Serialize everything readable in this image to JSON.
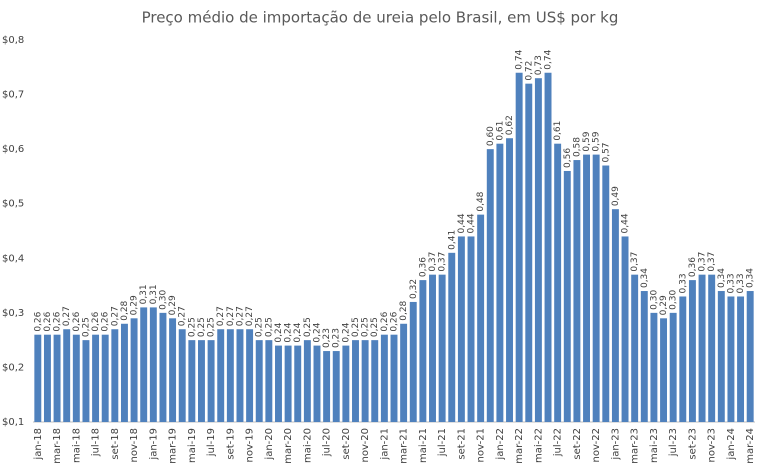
{
  "chart_data": {
    "type": "bar",
    "title": "Preço médio de importação de ureia pelo Brasil, em US$ por kg",
    "categories": [
      "jan-18",
      null,
      "mar-18",
      null,
      "mai-18",
      null,
      "jul-18",
      null,
      "set-18",
      null,
      "nov-18",
      null,
      "jan-19",
      null,
      "mar-19",
      null,
      "mai-19",
      null,
      "jul-19",
      null,
      "set-19",
      null,
      "nov-19",
      null,
      "jan-20",
      null,
      "mar-20",
      null,
      "mai-20",
      null,
      "jul-20",
      null,
      "set-20",
      null,
      "nov-20",
      null,
      "jan-21",
      null,
      "mar-21",
      null,
      "mai-21",
      null,
      "jul-21",
      null,
      "set-21",
      null,
      "nov-21",
      null,
      "jan-22",
      null,
      "mar-22",
      null,
      "mai-22",
      null,
      "jul-22",
      null,
      "set-22",
      null,
      "nov-22",
      null,
      "jan-23",
      null,
      "mar-23",
      null,
      "mai-23",
      null,
      "jul-23",
      null,
      "set-23",
      null,
      "nov-23",
      null,
      "jan-24",
      null,
      "mar-24"
    ],
    "values": [
      0.26,
      0.26,
      0.26,
      0.27,
      0.26,
      0.25,
      0.26,
      0.26,
      0.27,
      0.28,
      0.29,
      0.31,
      0.31,
      0.3,
      0.29,
      0.27,
      0.25,
      0.25,
      0.25,
      0.27,
      0.27,
      0.27,
      0.27,
      0.25,
      0.25,
      0.24,
      0.24,
      0.24,
      0.25,
      0.24,
      0.23,
      0.23,
      0.24,
      0.25,
      0.25,
      0.25,
      0.26,
      0.26,
      0.28,
      0.32,
      0.36,
      0.37,
      0.37,
      0.41,
      0.44,
      0.44,
      0.48,
      0.6,
      0.61,
      0.62,
      0.74,
      0.72,
      0.73,
      0.74,
      0.61,
      0.56,
      0.58,
      0.59,
      0.59,
      0.57,
      0.49,
      0.44,
      0.37,
      0.34,
      0.3,
      0.29,
      0.3,
      0.33,
      0.36,
      0.37,
      0.37,
      0.34,
      0.33,
      0.33,
      0.34
    ],
    "value_labels": [
      "0,26",
      "0,26",
      "0,26",
      "0,27",
      "0,26",
      "0,25",
      "0,26",
      "0,26",
      "0,27",
      "0,28",
      "0,29",
      "0,31",
      "0,31",
      "0,30",
      "0,29",
      "0,27",
      "0,25",
      "0,25",
      "0,25",
      "0,27",
      "0,27",
      "0,27",
      "0,27",
      "0,25",
      "0,25",
      "0,24",
      "0,24",
      "0,24",
      "0,25",
      "0,24",
      "0,23",
      "0,23",
      "0,24",
      "0,25",
      "0,25",
      "0,25",
      "0,26",
      "0,26",
      "0,28",
      "0,32",
      "0,36",
      "0,37",
      "0,37",
      "0,41",
      "0,44",
      "0,44",
      "0,48",
      "0,60",
      "0,61",
      "0,62",
      "0,74",
      "0,72",
      "0,73",
      "0,74",
      "0,61",
      "0,56",
      "0,58",
      "0,59",
      "0,59",
      "0,57",
      "0,49",
      "0,44",
      "0,37",
      "0,34",
      "0,30",
      "0,29",
      "0,30",
      "0,33",
      "0,36",
      "0,37",
      "0,37",
      "0,34",
      "0,33",
      "0,33",
      "0,34"
    ],
    "color": "#4f81bd",
    "ylim": [
      0.1,
      0.8
    ],
    "yticks": [
      {
        "value": 0.1,
        "label": "$0,1"
      },
      {
        "value": 0.2,
        "label": "$0,2"
      },
      {
        "value": 0.3,
        "label": "$0,3"
      },
      {
        "value": 0.4,
        "label": "$0,4"
      },
      {
        "value": 0.5,
        "label": "$0,5"
      },
      {
        "value": 0.6,
        "label": "$0,6"
      },
      {
        "value": 0.7,
        "label": "$0,7"
      },
      {
        "value": 0.8,
        "label": "$0,8"
      }
    ],
    "grid": false
  }
}
